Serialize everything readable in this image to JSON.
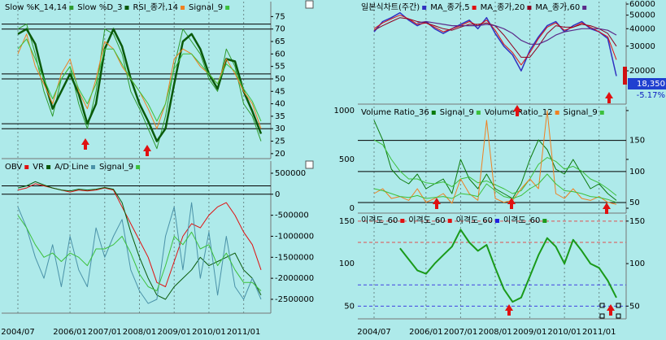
{
  "chart_data": [
    {
      "type": "line",
      "categories": [
        "2004/07",
        null,
        null,
        null,
        null,
        null,
        "2006/01",
        null,
        null,
        null,
        "2007/01",
        null,
        null,
        null,
        "2008/01",
        null,
        null,
        null,
        "2009/01",
        null,
        null,
        null,
        "2010/01",
        null,
        null,
        null,
        "2011/01",
        null,
        null
      ],
      "series": [
        {
          "name": "Slow %K_14,14",
          "color": "#2e9a2e",
          "width": 1,
          "values": [
            70,
            72,
            60,
            45,
            35,
            50,
            55,
            40,
            30,
            45,
            70,
            68,
            60,
            45,
            38,
            30,
            22,
            35,
            55,
            70,
            65,
            60,
            50,
            45,
            62,
            55,
            40,
            35,
            25
          ]
        },
        {
          "name": "Slow %D_3",
          "color": "#0a5a0a",
          "width": 2.5,
          "values": [
            68,
            70,
            64,
            50,
            38,
            45,
            52,
            44,
            32,
            40,
            62,
            70,
            63,
            50,
            40,
            33,
            25,
            30,
            48,
            65,
            68,
            62,
            52,
            46,
            58,
            57,
            45,
            37,
            28
          ]
        },
        {
          "name": "RSI_종가,14",
          "color": "#f08020",
          "width": 1,
          "values": [
            60,
            68,
            55,
            48,
            40,
            52,
            58,
            45,
            38,
            50,
            65,
            62,
            55,
            50,
            45,
            38,
            30,
            40,
            58,
            62,
            60,
            55,
            52,
            48,
            58,
            52,
            45,
            40,
            30
          ]
        },
        {
          "name": "Signal_9",
          "color": "#3cc03c",
          "width": 1,
          "values": [
            62,
            66,
            58,
            50,
            42,
            50,
            55,
            46,
            40,
            48,
            62,
            62,
            56,
            50,
            45,
            40,
            33,
            40,
            54,
            60,
            60,
            56,
            52,
            48,
            56,
            53,
            46,
            41,
            33
          ]
        }
      ],
      "ylim": [
        18,
        81
      ],
      "yticks": [
        20,
        25,
        30,
        35,
        40,
        45,
        50,
        55,
        60,
        65,
        70,
        75
      ],
      "grid": false,
      "ref_lines": [
        {
          "value": 30,
          "color": "#000000"
        },
        {
          "value": 32,
          "color": "#000000"
        },
        {
          "value": 50,
          "color": "#000000"
        },
        {
          "value": 52,
          "color": "#000000"
        },
        {
          "value": 70,
          "color": "#000000"
        },
        {
          "value": 72,
          "color": "#000000"
        }
      ]
    },
    {
      "type": "line",
      "categories": [
        "2004/07",
        null,
        null,
        null,
        null,
        null,
        "2006/01",
        null,
        null,
        null,
        "2007/01",
        null,
        null,
        null,
        "2008/01",
        null,
        null,
        null,
        "2009/01",
        null,
        null,
        null,
        "2010/01",
        null,
        null,
        null,
        "2011/01",
        null,
        null
      ],
      "series": [
        {
          "name": "OBV",
          "color": "#e01010",
          "width": 1,
          "values": [
            100000,
            150000,
            250000,
            200000,
            150000,
            100000,
            50000,
            100000,
            80000,
            100000,
            150000,
            100000,
            -300000,
            -700000,
            -1100000,
            -1500000,
            -2100000,
            -2200000,
            -1600000,
            -1000000,
            -700000,
            -800000,
            -500000,
            -300000,
            -200000,
            -500000,
            -900000,
            -1200000,
            -1800000
          ]
        },
        {
          "name": "VR",
          "color": "#0a5a0a",
          "width": 1,
          "values": [
            150000,
            200000,
            300000,
            220000,
            150000,
            100000,
            80000,
            120000,
            100000,
            120000,
            160000,
            120000,
            -200000,
            -900000,
            -1500000,
            -2000000,
            -2400000,
            -2500000,
            -2200000,
            -2000000,
            -1800000,
            -1500000,
            -1700000,
            -1600000,
            -1500000,
            -1400000,
            -1800000,
            -2000000,
            -2400000
          ]
        },
        {
          "name": "A/D Line",
          "color": "#4a92a8",
          "width": 1,
          "values": [
            -300000,
            -800000,
            -1500000,
            -2000000,
            -1200000,
            -2200000,
            -1000000,
            -1800000,
            -2200000,
            -800000,
            -1500000,
            -1000000,
            -600000,
            -1800000,
            -2300000,
            -2600000,
            -2500000,
            -1000000,
            -300000,
            -1800000,
            -200000,
            -2000000,
            -900000,
            -2400000,
            -1000000,
            -2200000,
            -2500000,
            -2000000,
            -2500000
          ]
        },
        {
          "name": "Signal_9",
          "color": "#3cc03c",
          "width": 1,
          "values": [
            -500000,
            -800000,
            -1200000,
            -1500000,
            -1400000,
            -1600000,
            -1400000,
            -1500000,
            -1700000,
            -1300000,
            -1300000,
            -1200000,
            -1000000,
            -1400000,
            -1900000,
            -2200000,
            -2300000,
            -1700000,
            -1000000,
            -1200000,
            -900000,
            -1300000,
            -1200000,
            -1700000,
            -1400000,
            -1800000,
            -2100000,
            -2100000,
            -2300000
          ]
        }
      ],
      "ylim": [
        -2830000,
        790000
      ],
      "yticks": [
        500000,
        0,
        -500000,
        -1000000,
        -1500000,
        -2000000,
        -2500000
      ],
      "grid": false,
      "ref_lines": [
        {
          "value": 200000,
          "color": "#000000"
        },
        {
          "value": 0,
          "color": "#000000"
        }
      ]
    },
    {
      "type": "line",
      "categories": [
        "2004/07",
        null,
        null,
        null,
        null,
        null,
        "2006/01",
        null,
        null,
        null,
        "2007/01",
        null,
        null,
        null,
        "2008/01",
        null,
        null,
        null,
        "2009/01",
        null,
        null,
        null,
        "2010/01",
        null,
        null,
        null,
        "2011/01",
        null,
        null
      ],
      "series": [
        {
          "name": "일본식차트(주간)",
          "color": "#3030c0",
          "width": 1.5,
          "values": [
            38000,
            45000,
            48000,
            52000,
            46000,
            42000,
            45000,
            40000,
            37000,
            40000,
            43000,
            46000,
            40000,
            48000,
            37000,
            30000,
            26000,
            20000,
            28000,
            35000,
            42000,
            45000,
            38000,
            42000,
            45000,
            40000,
            38000,
            34000,
            18350
          ]
        },
        {
          "name": "MA_종가,5",
          "color": "#e01010",
          "width": 1,
          "values": [
            40000,
            44000,
            47000,
            50000,
            47000,
            43000,
            44000,
            41000,
            38000,
            40000,
            42000,
            45000,
            42000,
            46000,
            39000,
            31000,
            27000,
            22000,
            27000,
            34000,
            41000,
            44000,
            39000,
            41000,
            44000,
            41000,
            38000,
            35000,
            24000
          ]
        },
        {
          "name": "MA_종가,20",
          "color": "#900020",
          "width": 1,
          "values": [
            39000,
            42000,
            45000,
            48000,
            47000,
            45000,
            44000,
            42000,
            40000,
            39000,
            41000,
            43000,
            43000,
            44000,
            42000,
            36000,
            30000,
            25000,
            25000,
            30000,
            37000,
            42000,
            41000,
            41000,
            43000,
            42000,
            40000,
            37000,
            30000
          ]
        },
        {
          "name": "MA_종가,60",
          "color": "#5a2a8a",
          "width": 1.2,
          "values": [
            null,
            null,
            null,
            null,
            null,
            44000,
            45000,
            44000,
            43000,
            42000,
            42000,
            42000,
            42000,
            43000,
            42000,
            40000,
            37000,
            33000,
            31000,
            31000,
            33000,
            36000,
            38000,
            39000,
            40000,
            40000,
            40000,
            39000,
            36000
          ]
        }
      ],
      "ylim": [
        11560,
        62450
      ],
      "ylog": true,
      "yticks": [
        60000,
        50000,
        40000,
        30000,
        20000
      ],
      "grid": false,
      "annotations": [
        "18,350",
        "-5.17%"
      ]
    },
    {
      "type": "line",
      "categories": [
        "2004/07",
        null,
        null,
        null,
        null,
        null,
        "2006/01",
        null,
        null,
        null,
        "2007/01",
        null,
        null,
        null,
        "2008/01",
        null,
        null,
        null,
        "2009/01",
        null,
        null,
        null,
        "2010/01",
        null,
        null,
        null,
        "2011/01",
        null,
        null
      ],
      "series": [
        {
          "name": "Volume Ratio_36",
          "color": "#0a7a0a",
          "width": 1,
          "values": [
            900,
            700,
            400,
            300,
            250,
            350,
            200,
            250,
            300,
            150,
            500,
            300,
            200,
            350,
            200,
            150,
            100,
            250,
            500,
            700,
            600,
            400,
            350,
            500,
            350,
            200,
            250,
            150,
            80
          ]
        },
        {
          "name": "Signal_9",
          "color": "#3cc03c",
          "width": 1,
          "values": [
            700,
            650,
            500,
            380,
            300,
            300,
            260,
            250,
            270,
            220,
            300,
            320,
            260,
            280,
            240,
            200,
            150,
            180,
            300,
            450,
            520,
            480,
            400,
            430,
            380,
            300,
            260,
            200,
            130
          ]
        },
        {
          "name": "Volume Ratio_12",
          "color": "#f08020",
          "width": 1,
          "values": [
            150,
            200,
            100,
            120,
            80,
            200,
            60,
            100,
            150,
            50,
            300,
            150,
            80,
            900,
            100,
            60,
            80,
            200,
            300,
            200,
            1000,
            150,
            100,
            200,
            100,
            80,
            120,
            60,
            40
          ]
        },
        {
          "name": "Signal_9",
          "color": "#3cc03c",
          "width": 1,
          "values": [
            200,
            180,
            150,
            120,
            110,
            130,
            100,
            110,
            120,
            100,
            150,
            140,
            120,
            250,
            180,
            120,
            100,
            130,
            200,
            250,
            350,
            250,
            180,
            170,
            150,
            120,
            110,
            90,
            60
          ]
        }
      ],
      "ylim": [
        -50,
        1041
      ],
      "yticks": [
        1000,
        500,
        0
      ],
      "y2lim": [
        33,
        204.5
      ],
      "y2ticks": [
        150,
        100,
        50
      ],
      "grid": true
    },
    {
      "type": "line",
      "categories": [
        "2004/07",
        null,
        null,
        null,
        null,
        null,
        "2006/01",
        null,
        null,
        null,
        "2007/01",
        null,
        null,
        null,
        "2008/01",
        null,
        null,
        null,
        "2009/01",
        null,
        null,
        null,
        "2010/01",
        null,
        null,
        null,
        "2011/01",
        null,
        null
      ],
      "series": [
        {
          "name": "이격도_60",
          "color": "#e01010",
          "width": 1,
          "values": [
            null,
            null,
            null,
            null,
            null,
            null,
            null,
            null,
            null,
            null,
            null,
            null,
            null,
            null,
            null,
            null,
            null,
            null,
            null,
            null,
            null,
            null,
            null,
            null,
            null,
            null,
            null,
            null,
            null
          ]
        },
        {
          "name": "이격도_60",
          "color": "#e01010",
          "width": 1,
          "values": [
            null,
            null,
            null,
            null,
            null,
            null,
            null,
            null,
            null,
            null,
            null,
            null,
            null,
            null,
            null,
            null,
            null,
            null,
            null,
            null,
            null,
            null,
            null,
            null,
            null,
            null,
            null,
            null,
            null
          ]
        },
        {
          "name": "이격도_60",
          "color": "#2020e0",
          "width": 1,
          "values": [
            null,
            null,
            null,
            null,
            null,
            null,
            null,
            null,
            null,
            null,
            null,
            null,
            null,
            null,
            null,
            null,
            null,
            null,
            null,
            null,
            null,
            null,
            null,
            null,
            null,
            null,
            null,
            null,
            null
          ]
        },
        {
          "name": "이격도_60",
          "color": "#1a9a1a",
          "width": 2,
          "values": [
            null,
            null,
            null,
            118,
            105,
            92,
            88,
            100,
            110,
            120,
            140,
            125,
            115,
            122,
            95,
            70,
            55,
            60,
            85,
            110,
            130,
            120,
            100,
            128,
            115,
            100,
            95,
            80,
            60
          ]
        }
      ],
      "ylim": [
        35,
        157.5
      ],
      "yticks": [
        150,
        100,
        50
      ],
      "yticks_both_sides": true,
      "grid": false,
      "ref_lines": [
        {
          "value": 150,
          "color": "#e05050",
          "dash": true
        },
        {
          "value": 125,
          "color": "#e05050",
          "dash": true
        },
        {
          "value": 75,
          "color": "#4040e0",
          "dash": true
        },
        {
          "value": 50,
          "color": "#4040e0",
          "dash": true
        }
      ]
    }
  ]
}
